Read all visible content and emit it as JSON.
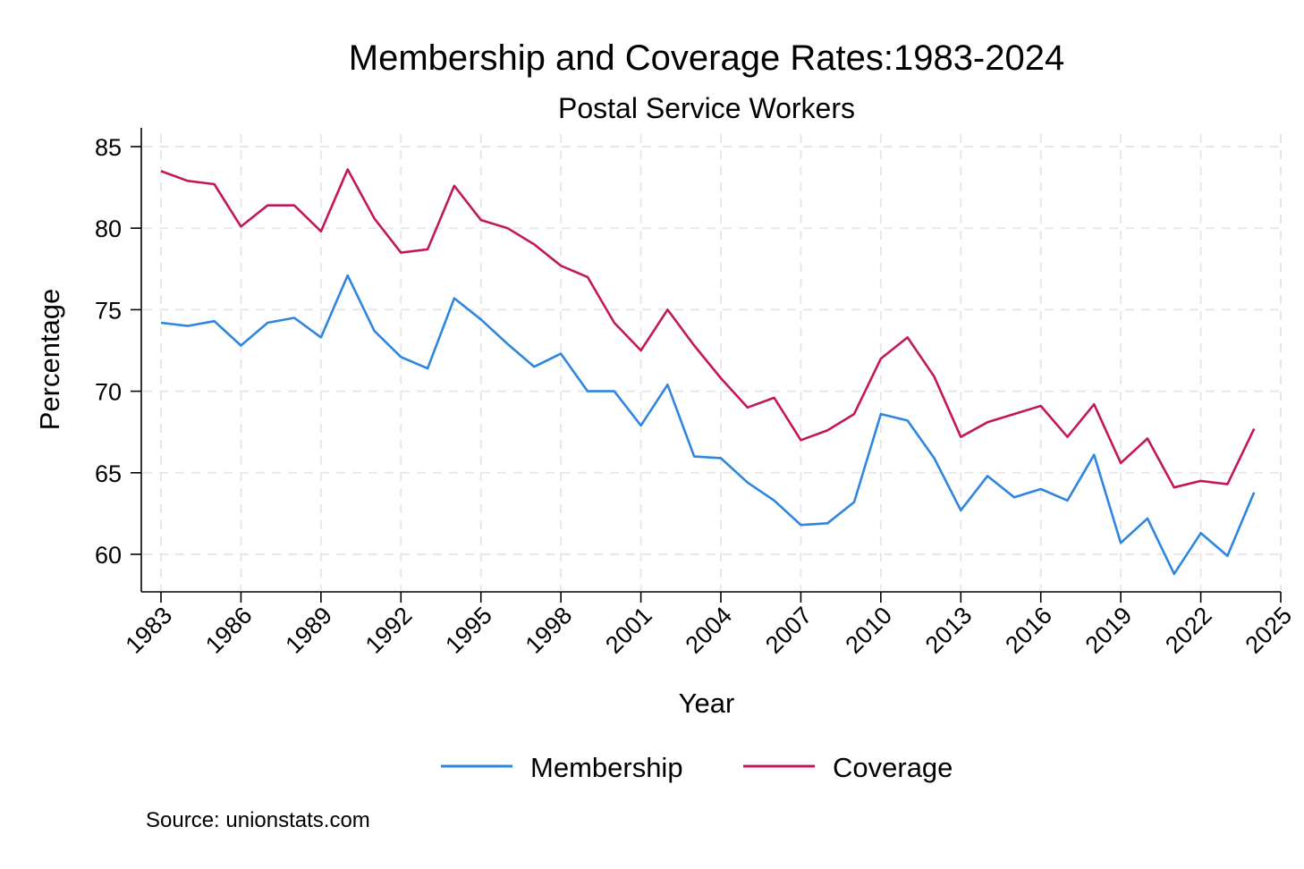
{
  "chart_data": {
    "type": "line",
    "title": "Membership and Coverage Rates:1983-2024",
    "subtitle": "Postal Service Workers",
    "xlabel": "Year",
    "ylabel": "Percentage",
    "xlim": [
      1983,
      2025
    ],
    "ylim": [
      58,
      86
    ],
    "x_ticks": [
      1983,
      1986,
      1989,
      1992,
      1995,
      1998,
      2001,
      2004,
      2007,
      2010,
      2013,
      2016,
      2019,
      2022,
      2025
    ],
    "y_ticks": [
      60,
      65,
      70,
      75,
      80,
      85
    ],
    "grid": true,
    "legend_position": "bottom",
    "note": "Source: unionstats.com",
    "x": [
      1983,
      1984,
      1985,
      1986,
      1987,
      1988,
      1989,
      1990,
      1991,
      1992,
      1993,
      1994,
      1995,
      1996,
      1997,
      1998,
      1999,
      2000,
      2001,
      2002,
      2003,
      2004,
      2005,
      2006,
      2007,
      2008,
      2009,
      2010,
      2011,
      2012,
      2013,
      2014,
      2015,
      2016,
      2017,
      2018,
      2019,
      2020,
      2021,
      2022,
      2023,
      2024
    ],
    "series": [
      {
        "name": "Membership",
        "color": "#2e86de",
        "values": [
          74.2,
          74.0,
          74.3,
          72.8,
          74.2,
          74.5,
          73.3,
          77.1,
          73.7,
          72.1,
          71.4,
          75.7,
          74.4,
          72.9,
          71.5,
          72.3,
          70.0,
          70.0,
          67.9,
          70.4,
          66.0,
          65.9,
          64.4,
          63.3,
          61.8,
          61.9,
          63.2,
          68.6,
          68.2,
          65.9,
          62.7,
          64.8,
          63.5,
          64.0,
          63.3,
          66.1,
          60.7,
          62.2,
          58.8,
          61.3,
          59.9,
          63.8
        ]
      },
      {
        "name": "Coverage",
        "color": "#c2185b",
        "values": [
          83.5,
          82.9,
          82.7,
          80.1,
          81.4,
          81.4,
          79.8,
          83.6,
          80.6,
          78.5,
          78.7,
          82.6,
          80.5,
          80.0,
          79.0,
          77.7,
          77.0,
          74.2,
          72.5,
          75.0,
          72.8,
          70.8,
          69.0,
          69.6,
          67.0,
          67.6,
          68.6,
          72.0,
          73.3,
          70.9,
          67.2,
          68.1,
          68.6,
          69.1,
          67.2,
          69.2,
          65.6,
          67.1,
          64.1,
          64.5,
          64.3,
          67.7
        ]
      }
    ]
  }
}
